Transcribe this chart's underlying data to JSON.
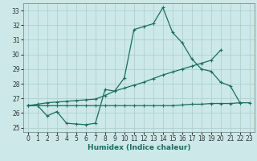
{
  "xlabel": "Humidex (Indice chaleur)",
  "xlim": [
    -0.5,
    23.5
  ],
  "ylim": [
    24.7,
    33.5
  ],
  "xticks": [
    0,
    1,
    2,
    3,
    4,
    5,
    6,
    7,
    8,
    9,
    10,
    11,
    12,
    13,
    14,
    15,
    16,
    17,
    18,
    19,
    20,
    21,
    22,
    23
  ],
  "yticks": [
    25,
    26,
    27,
    28,
    29,
    30,
    31,
    32,
    33
  ],
  "bg_color": "#cce8e8",
  "grid_color": "#aacccc",
  "line_color": "#1a6e62",
  "jagged_x": [
    0,
    1,
    2,
    3,
    4,
    5,
    6,
    7,
    8,
    9,
    10,
    11,
    12,
    13,
    14,
    15,
    16,
    17,
    18,
    19,
    20,
    21,
    22
  ],
  "jagged_y": [
    26.5,
    26.5,
    25.8,
    26.1,
    25.3,
    25.25,
    25.2,
    25.3,
    27.6,
    27.5,
    28.4,
    31.7,
    31.9,
    32.1,
    33.2,
    31.5,
    30.8,
    29.7,
    29.0,
    28.85,
    28.1,
    27.85,
    26.7
  ],
  "diag_x": [
    0,
    1,
    2,
    3,
    4,
    5,
    6,
    7,
    8,
    9,
    10,
    11,
    12,
    13,
    14,
    15,
    16,
    17,
    18,
    19,
    20
  ],
  "diag_y": [
    26.5,
    26.6,
    26.7,
    26.75,
    26.8,
    26.85,
    26.9,
    26.95,
    27.2,
    27.5,
    27.7,
    27.9,
    28.1,
    28.35,
    28.6,
    28.8,
    29.0,
    29.2,
    29.4,
    29.6,
    30.3
  ],
  "flat_x": [
    0,
    1,
    2,
    3,
    4,
    5,
    6,
    7,
    8,
    9,
    10,
    11,
    12,
    13,
    14,
    15,
    16,
    17,
    18,
    19,
    20,
    21,
    22,
    23
  ],
  "flat_y": [
    26.5,
    26.5,
    26.5,
    26.5,
    26.5,
    26.5,
    26.5,
    26.5,
    26.5,
    26.5,
    26.5,
    26.5,
    26.5,
    26.5,
    26.5,
    26.5,
    26.55,
    26.6,
    26.6,
    26.65,
    26.65,
    26.65,
    26.7,
    26.7
  ],
  "tick_fontsize": 5.5,
  "xlabel_fontsize": 6.5
}
